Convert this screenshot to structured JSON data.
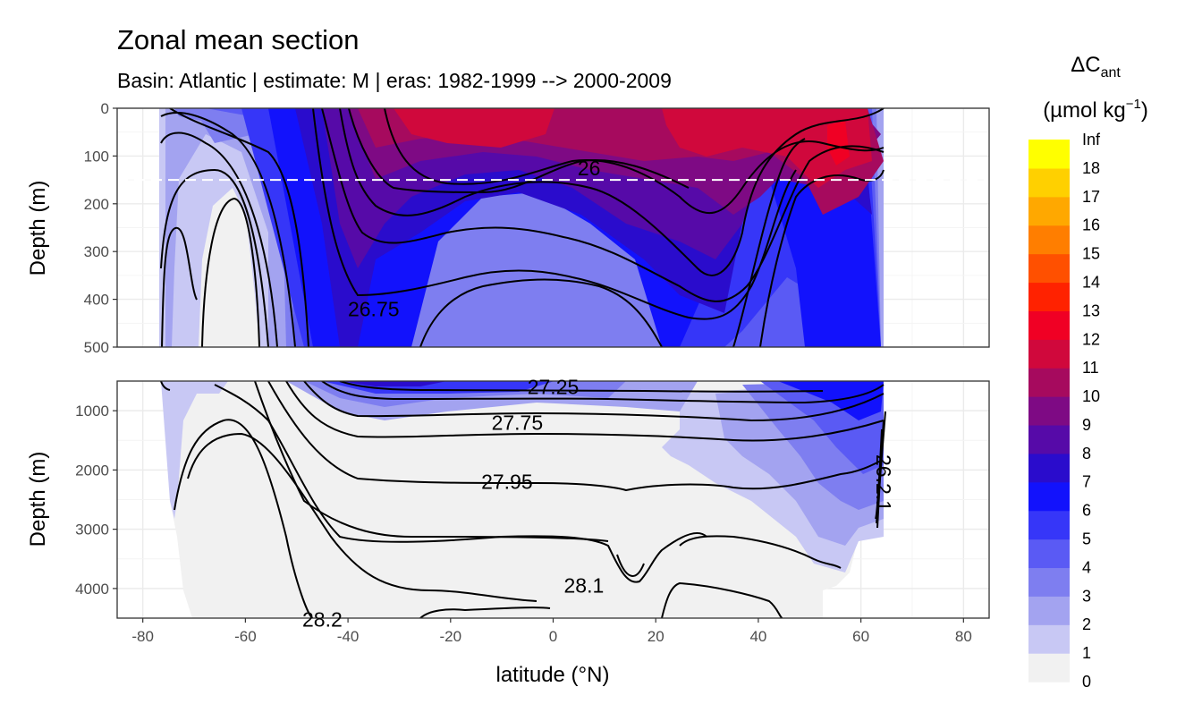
{
  "chart_data": {
    "type": "heatmap",
    "title": "Zonal mean section",
    "subtitle": "Basin: Atlantic | estimate: M  | eras: 1982-1999 --> 2000-2009",
    "xlabel": "latitude (°N)",
    "ylabel": "Depth (m)",
    "x_ticks": [
      "-80",
      "-60",
      "-40",
      "-20",
      "0",
      "20",
      "40",
      "60",
      "80"
    ],
    "xlim": [
      -85,
      85
    ],
    "panels": [
      {
        "name": "upper",
        "ylim": [
          0,
          500
        ],
        "y_ticks": [
          "0",
          "100",
          "200",
          "300",
          "400",
          "500"
        ],
        "reference_depth": 150
      },
      {
        "name": "lower",
        "ylim": [
          500,
          4500
        ],
        "y_ticks": [
          "1000",
          "2000",
          "3000",
          "4000"
        ]
      }
    ],
    "legend": {
      "title_main": "ΔC",
      "title_sub": "ant",
      "title_units_prefix": "(µmol kg",
      "title_units_sup": "−1",
      "title_units_suffix": ")",
      "placement": "right",
      "breaks": [
        "0",
        "1",
        "2",
        "3",
        "4",
        "5",
        "6",
        "7",
        "8",
        "9",
        "10",
        "11",
        "12",
        "13",
        "14",
        "15",
        "16",
        "17",
        "18",
        "Inf"
      ],
      "colors": [
        "#f1f1f1",
        "#c8c8f4",
        "#a3a3f0",
        "#7e7ef0",
        "#5a5af4",
        "#3636f8",
        "#1212fc",
        "#2a0ccc",
        "#560aa8",
        "#7e0a84",
        "#a60a5e",
        "#d0083c",
        "#f00024",
        "#ff2200",
        "#ff5000",
        "#ff7e00",
        "#ffa800",
        "#ffd000",
        "#ffff00"
      ]
    },
    "contour_labels": [
      {
        "text": "26",
        "lat": 7,
        "depth": 125
      },
      {
        "text": "26.75",
        "lat": -35,
        "depth": 420
      },
      {
        "text": "27.25",
        "lat": 0,
        "depth": 600
      },
      {
        "text": "27.75",
        "lat": -7,
        "depth": 1200
      },
      {
        "text": "27.95",
        "lat": -9,
        "depth": 2200
      },
      {
        "text": "28.1",
        "lat": 6,
        "depth": 3950
      },
      {
        "text": "28.2",
        "lat": -45,
        "depth": 4520
      },
      {
        "text": "26.2.1",
        "lat": 63,
        "depth": 2100
      }
    ]
  }
}
